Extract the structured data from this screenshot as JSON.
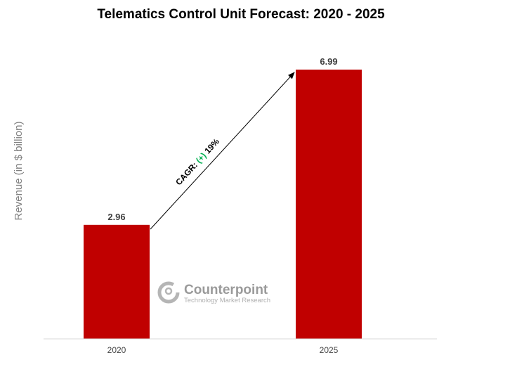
{
  "chart_data": {
    "type": "bar",
    "title": "Telematics Control Unit Forecast: 2020 - 2025",
    "xlabel": "",
    "ylabel": "Revenue  (in $ billion)",
    "categories": [
      "2020",
      "2025"
    ],
    "values": [
      2.96,
      6.99
    ],
    "value_labels": [
      "2.96",
      "6.99"
    ],
    "ylim": [
      0,
      8
    ],
    "grid": false,
    "legend": "none",
    "bar_color": "#c00000",
    "annotation": {
      "prefix": "CAGR: ",
      "highlight": "(+)",
      "suffix": " 19%",
      "highlight_color": "#00b050"
    }
  },
  "watermark": {
    "name": "Counterpoint",
    "tagline": "Technology Market Research",
    "logo_icon": "counterpoint-logo-icon"
  }
}
